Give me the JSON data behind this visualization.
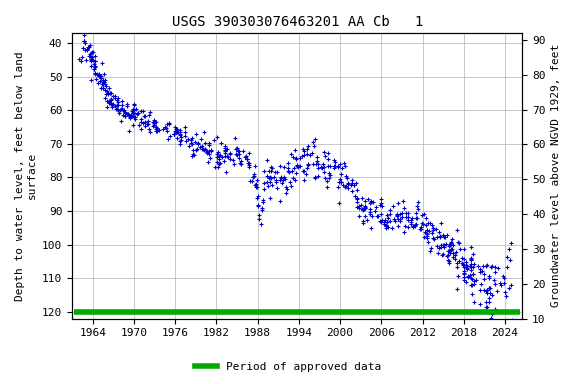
{
  "title": "USGS 390303076463201 AA Cb   1",
  "ylabel_left": "Depth to water level, feet below land\nsurface",
  "ylabel_right": "Groundwater level above NGVD 1929, feet",
  "ylim_left": [
    122,
    37
  ],
  "ylim_right": [
    10,
    92
  ],
  "xlim": [
    1961.0,
    2026.5
  ],
  "xticks": [
    1964,
    1970,
    1976,
    1982,
    1988,
    1994,
    2000,
    2006,
    2012,
    2018,
    2024
  ],
  "yticks_left": [
    40,
    50,
    60,
    70,
    80,
    90,
    100,
    110,
    120
  ],
  "yticks_right": [
    10,
    20,
    30,
    40,
    50,
    60,
    70,
    80,
    90
  ],
  "data_color": "#0000CC",
  "legend_color": "#00AA00",
  "legend_label": "Period of approved data",
  "background_color": "#ffffff",
  "plot_bg_color": "#ffffff",
  "grid_color": "#b0b0b0",
  "font_family": "monospace",
  "title_fontsize": 10,
  "axis_label_fontsize": 8,
  "tick_fontsize": 8,
  "marker": "+",
  "marker_size": 3.5,
  "marker_linewidth": 0.8
}
